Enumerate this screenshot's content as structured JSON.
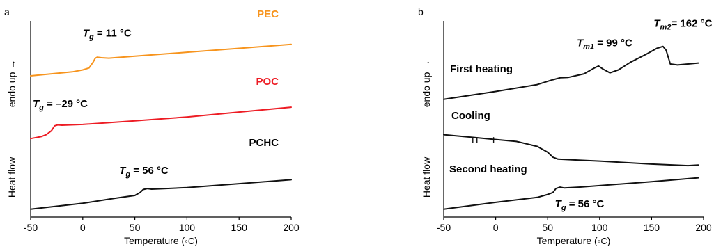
{
  "chart_data": [
    {
      "panel": "a",
      "type": "line",
      "xlabel_text": "Temperature (",
      "xlabel_unit": "◦C",
      "xlabel_close": ")",
      "ylabel_top": "endo up →",
      "ylabel_bottom": "Heat flow",
      "xlim": [
        -50,
        200
      ],
      "xticks": [
        -50,
        0,
        50,
        100,
        150,
        200
      ],
      "y_ticks": false,
      "grid": false,
      "series": [
        {
          "name": "PEC",
          "color": "#f7941d",
          "points": [
            [
              -50,
              0.72
            ],
            [
              -10,
              0.74
            ],
            [
              0,
              0.75
            ],
            [
              6,
              0.76
            ],
            [
              10,
              0.79
            ],
            [
              12,
              0.81
            ],
            [
              14,
              0.815
            ],
            [
              18,
              0.812
            ],
            [
              25,
              0.81
            ],
            [
              50,
              0.82
            ],
            [
              100,
              0.84
            ],
            [
              150,
              0.86
            ],
            [
              200,
              0.88
            ]
          ]
        },
        {
          "name": "POC",
          "color": "#ed1c24",
          "points": [
            [
              -50,
              0.4
            ],
            [
              -45,
              0.405
            ],
            [
              -40,
              0.41
            ],
            [
              -35,
              0.42
            ],
            [
              -30,
              0.44
            ],
            [
              -27,
              0.465
            ],
            [
              -24,
              0.47
            ],
            [
              -20,
              0.468
            ],
            [
              0,
              0.472
            ],
            [
              50,
              0.49
            ],
            [
              100,
              0.51
            ],
            [
              150,
              0.535
            ],
            [
              200,
              0.56
            ]
          ]
        },
        {
          "name": "PCHC",
          "color": "#111111",
          "points": [
            [
              -50,
              0.04
            ],
            [
              0,
              0.07
            ],
            [
              30,
              0.095
            ],
            [
              50,
              0.11
            ],
            [
              55,
              0.125
            ],
            [
              58,
              0.14
            ],
            [
              62,
              0.145
            ],
            [
              66,
              0.142
            ],
            [
              80,
              0.145
            ],
            [
              100,
              0.15
            ],
            [
              150,
              0.17
            ],
            [
              200,
              0.19
            ]
          ]
        }
      ],
      "annotations": [
        {
          "sym": "T",
          "sub": "g",
          "rest": " = 11 °C",
          "x": 0,
          "y": 0.92
        },
        {
          "sym": "T",
          "sub": "g",
          "rest": " = –29 °C",
          "x": -48,
          "y": 0.56
        },
        {
          "sym": "T",
          "sub": "g",
          "rest": " = 56 °C",
          "x": 35,
          "y": 0.22
        }
      ]
    },
    {
      "panel": "b",
      "type": "line",
      "xlabel_text": "Temperature (",
      "xlabel_unit": "◦C",
      "xlabel_close": ")",
      "ylabel_top": "endo up →",
      "ylabel_bottom": "Heat flow",
      "xlim": [
        -50,
        200
      ],
      "xticks": [
        -50,
        0,
        50,
        100,
        150,
        200
      ],
      "y_ticks": false,
      "grid": false,
      "series": [
        {
          "name": "First heating",
          "color": "#111111",
          "points": [
            [
              -50,
              0.6
            ],
            [
              0,
              0.64
            ],
            [
              40,
              0.675
            ],
            [
              55,
              0.7
            ],
            [
              62,
              0.71
            ],
            [
              70,
              0.712
            ],
            [
              85,
              0.73
            ],
            [
              95,
              0.76
            ],
            [
              99,
              0.77
            ],
            [
              103,
              0.755
            ],
            [
              110,
              0.735
            ],
            [
              118,
              0.75
            ],
            [
              130,
              0.79
            ],
            [
              145,
              0.83
            ],
            [
              155,
              0.86
            ],
            [
              161,
              0.87
            ],
            [
              164,
              0.85
            ],
            [
              168,
              0.78
            ],
            [
              175,
              0.775
            ],
            [
              195,
              0.785
            ]
          ]
        },
        {
          "name": "Cooling",
          "color": "#111111",
          "points": [
            [
              -50,
              0.42
            ],
            [
              -30,
              0.41
            ],
            [
              -20,
              0.405
            ],
            [
              0,
              0.395
            ],
            [
              20,
              0.385
            ],
            [
              40,
              0.36
            ],
            [
              50,
              0.33
            ],
            [
              55,
              0.305
            ],
            [
              60,
              0.295
            ],
            [
              80,
              0.29
            ],
            [
              100,
              0.285
            ],
            [
              150,
              0.27
            ],
            [
              185,
              0.262
            ],
            [
              195,
              0.265
            ]
          ]
        },
        {
          "name": "Second heating",
          "color": "#111111",
          "points": [
            [
              -50,
              0.04
            ],
            [
              0,
              0.075
            ],
            [
              40,
              0.1
            ],
            [
              50,
              0.115
            ],
            [
              55,
              0.125
            ],
            [
              58,
              0.145
            ],
            [
              62,
              0.152
            ],
            [
              66,
              0.148
            ],
            [
              80,
              0.152
            ],
            [
              100,
              0.16
            ],
            [
              150,
              0.18
            ],
            [
              195,
              0.2
            ]
          ]
        }
      ],
      "annotations": [
        {
          "sym": "T",
          "sub": "m1",
          "rest": " = 99 °C",
          "x": 78,
          "y": 0.87
        },
        {
          "sym": "T",
          "sub": "m2",
          "rest": "= 162 °C",
          "x": 152,
          "y": 0.97
        },
        {
          "sym": "T",
          "sub": "g",
          "rest": " = 56 °C",
          "x": 57,
          "y": 0.05
        }
      ]
    }
  ]
}
